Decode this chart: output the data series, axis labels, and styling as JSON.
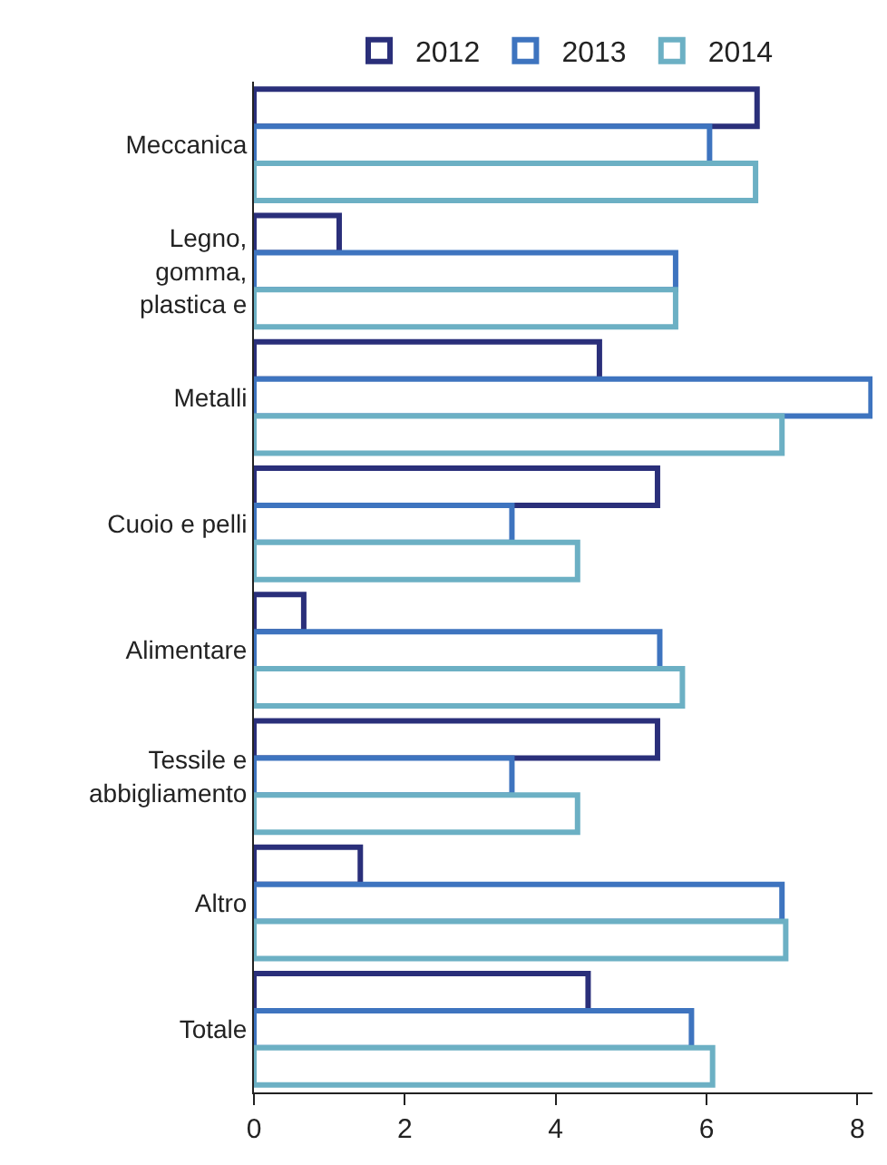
{
  "chart_data": {
    "type": "bar",
    "orientation": "horizontal",
    "categories": [
      "Meccanica",
      "Legno,\ngomma,\nplastica e",
      "Metalli",
      "Cuoio e pelli",
      "Alimentare",
      "Tessile e\nabbigliamento",
      "Altro",
      "Totale"
    ],
    "series": [
      {
        "name": "2012",
        "color": "#2a2f7a",
        "values": [
          6.67,
          1.13,
          4.58,
          5.35,
          0.66,
          5.35,
          1.41,
          4.43
        ]
      },
      {
        "name": "2013",
        "color": "#3e74bf",
        "values": [
          6.04,
          5.59,
          8.18,
          3.42,
          5.38,
          3.42,
          7.0,
          5.8
        ]
      },
      {
        "name": "2014",
        "color": "#6cb0c4",
        "values": [
          6.65,
          5.59,
          7.0,
          4.29,
          5.68,
          4.29,
          7.05,
          6.08
        ]
      }
    ],
    "xlim": [
      0,
      8.2
    ],
    "xticks": [
      0,
      2,
      4,
      6,
      8
    ],
    "legend": "top"
  }
}
